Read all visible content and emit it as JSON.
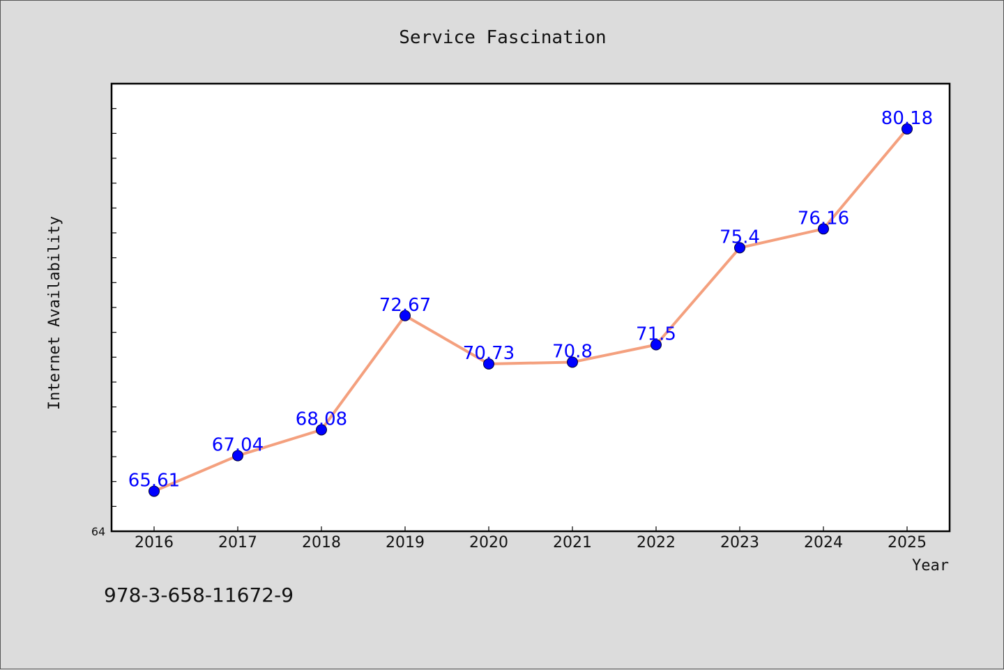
{
  "chart_data": {
    "type": "line",
    "title": "Service Fascination",
    "xlabel": "Year",
    "ylabel": "Internet Availability",
    "categories": [
      "2016",
      "2017",
      "2018",
      "2019",
      "2020",
      "2021",
      "2022",
      "2023",
      "2024",
      "2025"
    ],
    "values": [
      65.61,
      67.04,
      68.08,
      72.67,
      70.73,
      70.8,
      71.5,
      75.4,
      76.16,
      80.18
    ],
    "data_labels": [
      "65.61",
      "67.04",
      "68.08",
      "72.67",
      "70.73",
      "70.8",
      "71.5",
      "75.4",
      "76.16",
      "80.18"
    ],
    "ylim": [
      64,
      82
    ],
    "y_tick_label": "64",
    "grid": false,
    "line_color": "#f4a07e",
    "marker_color": "#0000ff",
    "label_color": "#0000ff"
  },
  "footnote": "978-3-658-11672-9"
}
